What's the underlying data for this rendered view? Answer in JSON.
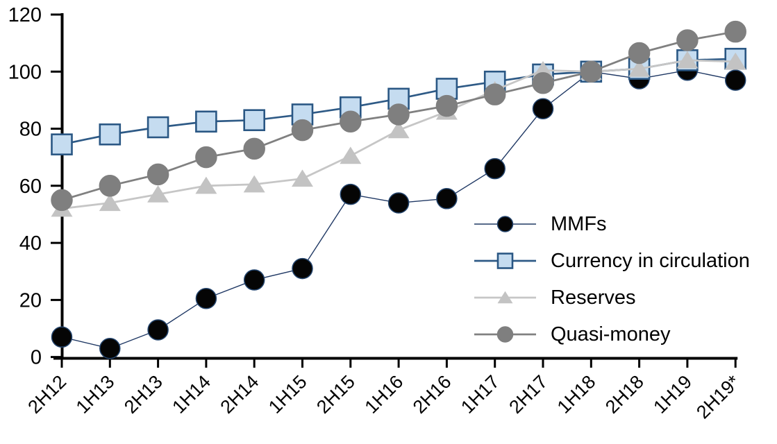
{
  "chart_data": {
    "type": "line",
    "title": "",
    "xlabel": "",
    "ylabel": "",
    "categories": [
      "2H12",
      "1H13",
      "2H13",
      "1H14",
      "2H14",
      "1H15",
      "2H15",
      "1H16",
      "2H16",
      "1H17",
      "2H17",
      "1H18",
      "2H18",
      "1H19",
      "2H19*"
    ],
    "series": [
      {
        "name": "MMFs",
        "marker": "circle",
        "marker_fill": "#050505",
        "marker_stroke": "#24456E",
        "line_color": "#1F3864",
        "line_width": 1.4,
        "marker_size": 14.5,
        "values": [
          7,
          3,
          9.5,
          20.5,
          27,
          31,
          57,
          54,
          55.5,
          66,
          87,
          100,
          97.5,
          100.5,
          97
        ]
      },
      {
        "name": "Currency in circulation",
        "marker": "square",
        "marker_fill": "#C5DCF0",
        "marker_stroke": "#2A5784",
        "line_color": "#2E5A86",
        "line_width": 2.7,
        "marker_size": 14.5,
        "values": [
          74.5,
          78,
          80.5,
          82.5,
          83,
          85,
          87.5,
          90.5,
          94,
          96.5,
          99,
          100,
          101,
          104,
          104.5
        ]
      },
      {
        "name": "Reserves",
        "marker": "triangle",
        "marker_fill": "#C3C3C3",
        "marker_stroke": "#C3C3C3",
        "line_color": "#C6C6C6",
        "line_width": 2.8,
        "marker_size": 15.5,
        "values": [
          52,
          54,
          57,
          60,
          60.5,
          62.5,
          70.5,
          79.5,
          86,
          93.5,
          100.5,
          100,
          101,
          104,
          103.5
        ]
      },
      {
        "name": "Quasi-money",
        "marker": "circle",
        "marker_fill": "#7F7F7F",
        "marker_stroke": "#7F7F7F",
        "line_color": "#808080",
        "line_width": 2.8,
        "marker_size": 15,
        "values": [
          55,
          60,
          64,
          70,
          73,
          79.5,
          82.5,
          85,
          88,
          92,
          96,
          100,
          106.5,
          111,
          114
        ]
      }
    ],
    "ylim": [
      0,
      120
    ],
    "yticks": [
      0,
      20,
      40,
      60,
      80,
      100,
      120
    ],
    "grid": false,
    "legend_position": "inside-right",
    "axis_color": "#000000"
  },
  "legend": {
    "items": [
      {
        "label": "MMFs"
      },
      {
        "label": "Currency in circulation"
      },
      {
        "label": "Reserves"
      },
      {
        "label": "Quasi-money"
      }
    ]
  }
}
